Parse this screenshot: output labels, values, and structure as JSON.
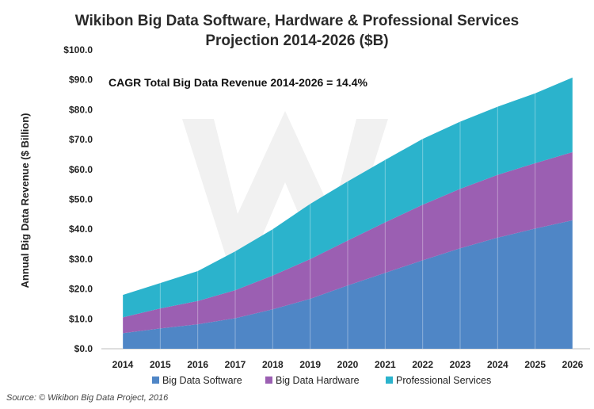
{
  "chart_data": {
    "type": "area",
    "stacked": true,
    "title_lines": [
      "Wikibon Big Data Software, Hardware & Professional Services",
      "Projection 2014-2026 ($B)"
    ],
    "ylabel": "Annual  Big Data Revenue  ($ Billion)",
    "xlabel": "",
    "categories": [
      "2014",
      "2015",
      "2016",
      "2017",
      "2018",
      "2019",
      "2020",
      "2021",
      "2022",
      "2023",
      "2024",
      "2025",
      "2026"
    ],
    "series": [
      {
        "name": "Big Data Software",
        "color": "#4f86c6",
        "values": [
          5.2,
          6.8,
          8.2,
          10.2,
          13.2,
          16.7,
          21.2,
          25.4,
          29.6,
          33.6,
          37.2,
          40.2,
          43.0
        ]
      },
      {
        "name": "Big Data Hardware",
        "color": "#9b5fb2",
        "values": [
          5.3,
          6.7,
          7.8,
          9.4,
          11.3,
          13.3,
          15.0,
          16.9,
          18.6,
          19.9,
          21.0,
          21.9,
          22.8
        ]
      },
      {
        "name": "Professional Services",
        "color": "#2bb3cc",
        "values": [
          7.5,
          8.5,
          10.0,
          13.0,
          15.5,
          18.5,
          19.8,
          20.9,
          22.0,
          22.5,
          22.8,
          23.4,
          25.0
        ]
      }
    ],
    "ylim": [
      0,
      100
    ],
    "y_ticks": [
      "$0.0",
      "$10.0",
      "$20.0",
      "$30.0",
      "$40.0",
      "$50.0",
      "$60.0",
      "$70.0",
      "$80.0",
      "$90.0",
      "$100.0"
    ],
    "annotation": "CAGR Total Big Data Revenue 2014-2026 = 14.4%",
    "legend_position": "bottom",
    "grid": false
  },
  "source": "Source: © Wikibon Big Data Project, 2016"
}
